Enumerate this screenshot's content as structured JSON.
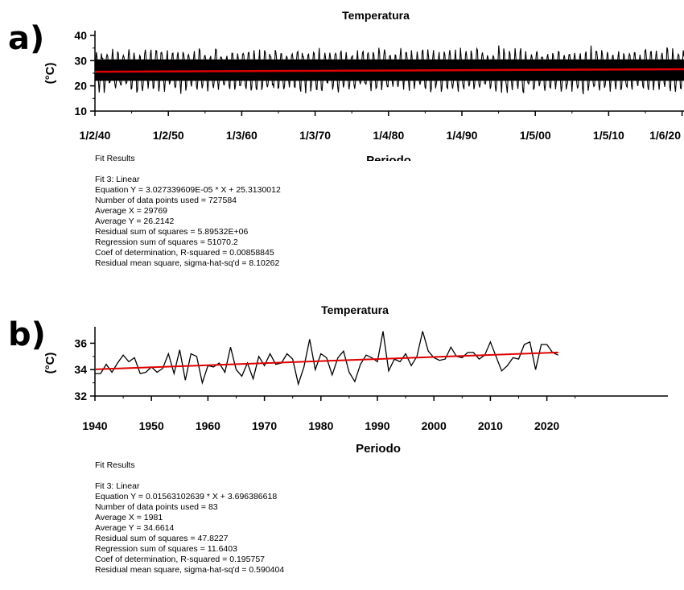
{
  "panels": {
    "a": {
      "label": "a)"
    },
    "b": {
      "label": "b)"
    }
  },
  "chart_data": [
    {
      "type": "line",
      "title": "Temperatura",
      "xlabel": "Periodo",
      "ylabel": "(°C)",
      "ylim": [
        10,
        40
      ],
      "yticks": [
        10,
        20,
        30,
        40
      ],
      "xtick_labels": [
        "1/2/40",
        "1/2/50",
        "1/3/60",
        "1/3/70",
        "1/4/80",
        "1/4/90",
        "1/5/00",
        "1/5/10",
        "1/6/20"
      ],
      "series": [
        {
          "role": "daily temperature signal, oscillating roughly between 17 and 34 °C",
          "color": "#000000",
          "center": 26.2,
          "amplitude": 7.5
        },
        {
          "role": "linear fit",
          "color": "#e00000",
          "y_start": 25.6,
          "y_end": 26.6
        }
      ],
      "grid": false
    },
    {
      "type": "line",
      "title": "Temperatura",
      "xlabel": "Periodo",
      "ylabel": "(°C)",
      "ylim": [
        32,
        37
      ],
      "xlim": [
        1940,
        2030
      ],
      "yticks": [
        32,
        34,
        36
      ],
      "xticks": [
        1940,
        1950,
        1960,
        1970,
        1980,
        1990,
        2000,
        2010,
        2020
      ],
      "x": [
        1940,
        1941,
        1942,
        1943,
        1944,
        1945,
        1946,
        1947,
        1948,
        1949,
        1950,
        1951,
        1952,
        1953,
        1954,
        1955,
        1956,
        1957,
        1958,
        1959,
        1960,
        1961,
        1962,
        1963,
        1964,
        1965,
        1966,
        1967,
        1968,
        1969,
        1970,
        1971,
        1972,
        1973,
        1974,
        1975,
        1976,
        1977,
        1978,
        1979,
        1980,
        1981,
        1982,
        1983,
        1984,
        1985,
        1986,
        1987,
        1988,
        1989,
        1990,
        1991,
        1992,
        1993,
        1994,
        1995,
        1996,
        1997,
        1998,
        1999,
        2000,
        2001,
        2002,
        2003,
        2004,
        2005,
        2006,
        2007,
        2008,
        2009,
        2010,
        2011,
        2012,
        2013,
        2014,
        2015,
        2016,
        2017,
        2018,
        2019,
        2020,
        2021,
        2022
      ],
      "y": [
        33.7,
        33.7,
        34.4,
        33.8,
        34.5,
        35.1,
        34.6,
        34.9,
        33.7,
        33.8,
        34.2,
        33.8,
        34.1,
        35.2,
        33.7,
        35.5,
        33.2,
        35.2,
        35.0,
        33.0,
        34.3,
        34.2,
        34.5,
        33.8,
        35.7,
        34.0,
        33.5,
        34.5,
        33.3,
        35.0,
        34.3,
        35.2,
        34.4,
        34.5,
        35.2,
        34.8,
        32.9,
        34.2,
        36.3,
        34.0,
        35.2,
        34.9,
        33.6,
        34.9,
        35.4,
        33.8,
        33.1,
        34.4,
        35.1,
        34.9,
        34.6,
        36.9,
        33.9,
        34.8,
        34.6,
        35.2,
        34.3,
        35.0,
        36.9,
        35.4,
        34.9,
        34.7,
        34.8,
        35.7,
        35.0,
        34.9,
        35.3,
        35.3,
        34.8,
        35.1,
        36.1,
        35.0,
        33.9,
        34.3,
        34.9,
        34.8,
        35.9,
        36.1,
        34.0,
        35.9,
        35.9,
        35.3,
        35.1
      ],
      "fit": {
        "color": "#e00000",
        "x": [
          1940,
          2022
        ],
        "y": [
          34.02,
          35.3
        ]
      },
      "grid": false
    }
  ],
  "fit_a": {
    "title": "Fit Results",
    "lines": [
      "Fit 3: Linear",
      "Equation Y = 3.027339609E-05 * X + 25.3130012",
      "Number of data points used = 727584",
      "Average X = 29769",
      "Average Y = 26.2142",
      "Residual sum of squares = 5.89532E+06",
      "Regression sum of squares = 51070.2",
      "Coef of determination, R-squared = 0.00858845",
      "Residual mean square, sigma-hat-sq'd = 8.10262"
    ]
  },
  "fit_b": {
    "title": "Fit Results",
    "lines": [
      "Fit 3: Linear",
      "Equation Y = 0.01563102639 * X + 3.696386618",
      "Number of data points used = 83",
      "Average X = 1981",
      "Average Y = 34.6614",
      "Residual sum of squares = 47.8227",
      "Regression sum of squares = 11.6403",
      "Coef of determination, R-squared = 0.195757",
      "Residual mean square, sigma-hat-sq'd = 0.590404"
    ]
  }
}
